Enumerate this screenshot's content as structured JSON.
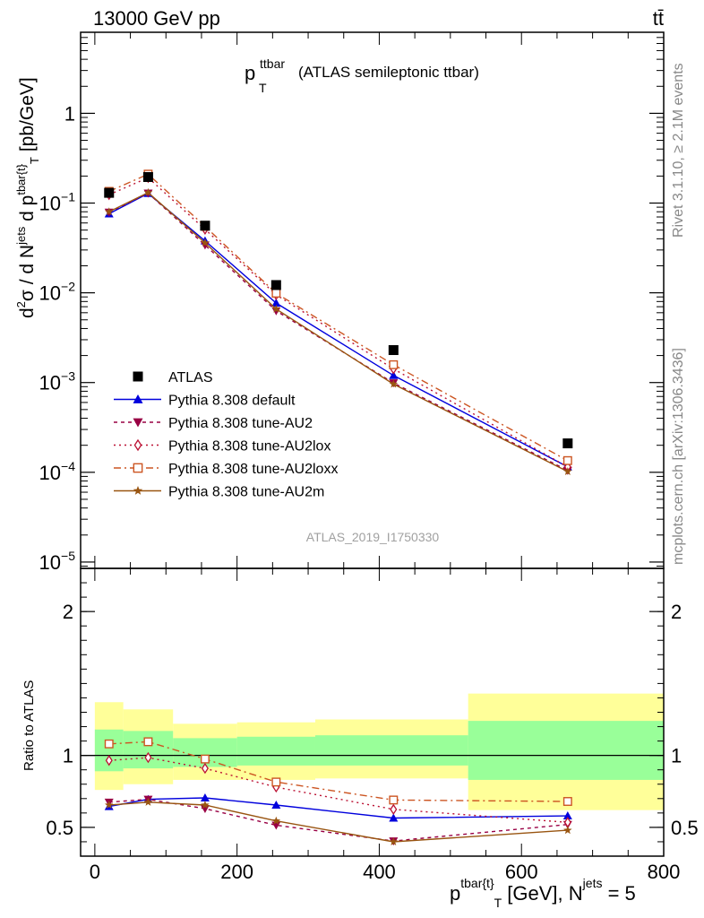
{
  "header": {
    "left": "13000 GeV pp",
    "right": "tt̄"
  },
  "side_labels": {
    "rivet": "Rivet 3.1.10, ≥ 2.1M events",
    "mcplots": "mcplots.cern.ch [arXiv:1306.3436]"
  },
  "analysis_tag": "ATLAS_2019_I1750330",
  "colors": {
    "data": "#000000",
    "default": "#0000dd",
    "au2": "#990044",
    "au2lox": "#bb1133",
    "au2loxx": "#cc5522",
    "au2m": "#995511",
    "band_outer": "#ffff99",
    "band_inner": "#99ff99"
  },
  "chart_data": [
    {
      "type": "line",
      "panel": "main",
      "title_main": "p",
      "title_sup": "ttbar",
      "title_sub": "T",
      "title_rest": "(ATLAS semileptonic ttbar)",
      "ylabel": "d²σ / d N^jets d p^tbar{t}_T [pb/GeV]",
      "ylabel_parts": {
        "a": "d",
        "a_sup": "2",
        "b": "σ  /  d N",
        "b_sup": "jets",
        "c": " d p",
        "c_sup": "tbar{t}",
        "c_sub": "T",
        "d": " [pb/GeV]"
      },
      "yscale": "log",
      "ylim": [
        8.5e-06,
        8
      ],
      "xlim": [
        -20,
        800
      ],
      "yticks": [
        {
          "v": 1e-05,
          "base": "10",
          "exp": "−5"
        },
        {
          "v": 0.0001,
          "base": "10",
          "exp": "−4"
        },
        {
          "v": 0.001,
          "base": "10",
          "exp": "−3"
        },
        {
          "v": 0.01,
          "base": "10",
          "exp": "−2"
        },
        {
          "v": 0.1,
          "base": "10",
          "exp": "−1"
        },
        {
          "v": 1,
          "base": "1",
          "exp": ""
        }
      ],
      "x": [
        20,
        75,
        155,
        255,
        420,
        665
      ],
      "data": {
        "name": "ATLAS",
        "values": [
          0.13,
          0.195,
          0.056,
          0.0122,
          0.0023,
          0.00021
        ]
      },
      "series": [
        {
          "key": "default",
          "name": "Pythia 8.308 default",
          "marker": "triangle-up",
          "dash": "",
          "values": [
            0.076,
            0.128,
            0.038,
            0.0077,
            0.0012,
            0.000115
          ]
        },
        {
          "key": "au2",
          "name": "Pythia 8.308 tune-AU2",
          "marker": "triangle-down",
          "dash": "4,4",
          "values": [
            0.079,
            0.129,
            0.034,
            0.0063,
            0.00099,
            0.000105
          ]
        },
        {
          "key": "au2lox",
          "name": "Pythia 8.308 tune-AU2lox",
          "marker": "diamond",
          "dash": "2,4",
          "values": [
            0.124,
            0.192,
            0.051,
            0.0095,
            0.00142,
            0.000115
          ]
        },
        {
          "key": "au2loxx",
          "name": "Pythia 8.308 tune-AU2loxx",
          "marker": "square",
          "dash": "8,4,2,4",
          "values": [
            0.135,
            0.21,
            0.055,
            0.0099,
            0.00158,
            0.000135
          ]
        },
        {
          "key": "au2m",
          "name": "Pythia 8.308 tune-AU2m",
          "marker": "star",
          "dash": "",
          "values": [
            0.08,
            0.131,
            0.036,
            0.0066,
            0.00096,
            0.000102
          ]
        }
      ],
      "legend_position": "lower-left"
    },
    {
      "type": "line",
      "panel": "ratio",
      "ylabel": "Ratio to ATLAS",
      "ylim": [
        0.3,
        2.3
      ],
      "xlim": [
        -20,
        800
      ],
      "yticks": [
        {
          "v": 0.5,
          "label": "0.5"
        },
        {
          "v": 1,
          "label": "1"
        },
        {
          "v": 2,
          "label": "2"
        }
      ],
      "xticks": [
        {
          "v": 0,
          "label": "0"
        },
        {
          "v": 200,
          "label": "200"
        },
        {
          "v": 400,
          "label": "400"
        },
        {
          "v": 600,
          "label": "600"
        },
        {
          "v": 800,
          "label": "800"
        }
      ],
      "xlabel_parts": {
        "a": "p",
        "a_sup": "tbar{t}",
        "a_sub": "T",
        "b": " [GeV], N",
        "b_sup": "jets",
        "c": " = 5"
      },
      "bins": [
        {
          "lo": 0,
          "hi": 40,
          "outer": [
            0.76,
            1.37
          ],
          "inner": [
            0.89,
            1.18
          ]
        },
        {
          "lo": 40,
          "hi": 110,
          "outer": [
            0.8,
            1.32
          ],
          "inner": [
            0.91,
            1.17
          ]
        },
        {
          "lo": 110,
          "hi": 200,
          "outer": [
            0.83,
            1.22
          ],
          "inner": [
            0.92,
            1.12
          ]
        },
        {
          "lo": 200,
          "hi": 310,
          "outer": [
            0.83,
            1.23
          ],
          "inner": [
            0.93,
            1.13
          ]
        },
        {
          "lo": 310,
          "hi": 525,
          "outer": [
            0.84,
            1.25
          ],
          "inner": [
            0.93,
            1.14
          ]
        },
        {
          "lo": 525,
          "hi": 800,
          "outer": [
            0.62,
            1.43
          ],
          "inner": [
            0.83,
            1.24
          ]
        }
      ],
      "x": [
        20,
        75,
        155,
        255,
        420,
        665
      ],
      "series": [
        {
          "key": "default",
          "marker": "triangle-up",
          "dash": "",
          "values": [
            0.645,
            0.695,
            0.705,
            0.655,
            0.565,
            0.58
          ]
        },
        {
          "key": "au2",
          "marker": "triangle-down",
          "dash": "4,4",
          "values": [
            0.675,
            0.695,
            0.63,
            0.515,
            0.405,
            0.52
          ]
        },
        {
          "key": "au2lox",
          "marker": "diamond",
          "dash": "2,4",
          "values": [
            0.965,
            0.985,
            0.91,
            0.78,
            0.625,
            0.535
          ]
        },
        {
          "key": "au2loxx",
          "marker": "square",
          "dash": "8,4,2,4",
          "values": [
            1.08,
            1.095,
            0.975,
            0.815,
            0.69,
            0.68
          ]
        },
        {
          "key": "au2m",
          "marker": "star",
          "dash": "",
          "values": [
            0.655,
            0.675,
            0.655,
            0.545,
            0.4,
            0.48
          ]
        }
      ]
    }
  ]
}
